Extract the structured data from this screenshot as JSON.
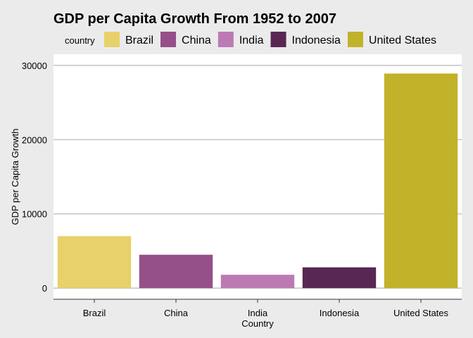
{
  "chart_data": {
    "type": "bar",
    "title": "GDP per Capita Growth From 1952 to 2007",
    "xlabel": "Country",
    "ylabel": "GDP per Capita Growth",
    "legend_title": "country",
    "legend_position": "top",
    "categories": [
      "Brazil",
      "China",
      "India",
      "Indonesia",
      "United States"
    ],
    "values": [
      7000,
      4500,
      1800,
      2800,
      28900
    ],
    "colors": [
      "#e8d16b",
      "#955089",
      "#bc7ab5",
      "#582852",
      "#c2b22a"
    ],
    "y_ticks": [
      0,
      10000,
      20000,
      30000
    ],
    "ylim": [
      -1500,
      31500
    ],
    "grid": true
  }
}
